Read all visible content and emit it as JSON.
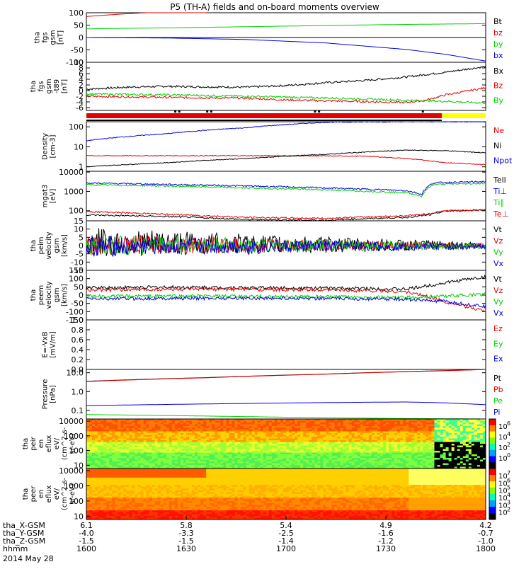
{
  "title": "P5 (TH-A) fields and on-board moments overview",
  "date_label": "2014 May 28",
  "colors": {
    "black": "#000000",
    "red": "#e00000",
    "green": "#00d000",
    "blue": "#0000e0",
    "yellow": "#ffff00"
  },
  "chart_data": [
    {
      "type": "line",
      "id": "fgs_gsm",
      "ylabel": [
        "tha",
        "fgs",
        "gsm",
        "[nT]"
      ],
      "yticks": [
        "100",
        "50",
        "0",
        "-50",
        "-100"
      ],
      "ylim": [
        -100,
        100
      ],
      "series": [
        {
          "name": "Bt",
          "color": "#000000",
          "x": [
            0,
            0.25,
            0.5,
            0.75,
            1
          ],
          "values": [
            0,
            0,
            0,
            0,
            0
          ]
        },
        {
          "name": "bz",
          "color": "#e00000",
          "x": [
            0,
            0.1,
            0.2,
            0.3
          ],
          "values": [
            85,
            96,
            104,
            112
          ]
        },
        {
          "name": "by",
          "color": "#00d000",
          "x": [
            0,
            0.25,
            0.5,
            0.75,
            1
          ],
          "values": [
            35,
            40,
            46,
            52,
            56
          ]
        },
        {
          "name": "bx",
          "color": "#0000e0",
          "x": [
            0,
            0.2,
            0.4,
            0.6,
            0.8,
            0.9,
            1
          ],
          "values": [
            0,
            -2,
            -8,
            -22,
            -48,
            -68,
            -95
          ]
        }
      ]
    },
    {
      "type": "line",
      "id": "fgs_gsm_detrended",
      "ylabel": [
        "tha",
        "fgs",
        "gsm",
        "-t89",
        "[nT]"
      ],
      "yticks": [
        "10",
        "8",
        "6",
        "4",
        "2",
        "0",
        "-2",
        "-4",
        "-6"
      ],
      "ylim": [
        -7,
        10
      ],
      "series": [
        {
          "name": "Bx",
          "color": "#000000",
          "x": [
            0,
            0.1,
            0.2,
            0.3,
            0.4,
            0.5,
            0.6,
            0.7,
            0.8,
            0.9,
            1
          ],
          "values": [
            0.5,
            1.2,
            1.5,
            1.3,
            1.2,
            1.8,
            2.8,
            3.6,
            4.8,
            6.5,
            8.5
          ]
        },
        {
          "name": "Bz",
          "color": "#e00000",
          "x": [
            0,
            0.2,
            0.4,
            0.5,
            0.6,
            0.7,
            0.8,
            0.85,
            0.9,
            1
          ],
          "values": [
            -2,
            -2.4,
            -2.7,
            -3.3,
            -3.6,
            -3.9,
            -4.2,
            -3.4,
            -1.5,
            1
          ]
        },
        {
          "name": "By",
          "color": "#00d000",
          "x": [
            0,
            0.2,
            0.4,
            0.6,
            0.8,
            0.9,
            1
          ],
          "values": [
            -1.2,
            -1.5,
            -2,
            -2.6,
            -3.4,
            -3.8,
            -4.4
          ]
        }
      ]
    },
    {
      "type": "line",
      "id": "density",
      "ylabel": [
        "Density",
        "[cm-3]"
      ],
      "yticks": [
        "100",
        "10",
        "1"
      ],
      "ylim": [
        0.6,
        180
      ],
      "log": true,
      "series": [
        {
          "name": "Ne",
          "color": "#e00000",
          "x": [
            0,
            0.5,
            0.7,
            0.8,
            0.9,
            1
          ],
          "values": [
            3.6,
            3.6,
            3.4,
            2.6,
            1.6,
            1.3
          ]
        },
        {
          "name": "Ni",
          "color": "#000000",
          "x": [
            0,
            0.2,
            0.4,
            0.6,
            0.8,
            0.9,
            1
          ],
          "values": [
            1,
            1.6,
            2.6,
            4.2,
            6.8,
            6.4,
            5
          ]
        },
        {
          "name": "Npot",
          "color": "#0000e0",
          "x": [
            0,
            0.2,
            0.4,
            0.6,
            0.8,
            1
          ],
          "values": [
            20,
            45,
            90,
            170,
            180,
            180
          ]
        }
      ]
    },
    {
      "type": "line",
      "id": "temperature",
      "ylabel": [
        "mgat3",
        "[eV]"
      ],
      "yticks": [
        "10000",
        "1000",
        "100"
      ],
      "ylim": [
        30,
        11000
      ],
      "log": true,
      "extra_labels": [
        "Te⊥"
      ],
      "series": [
        {
          "name": "Tell",
          "color": "#000000",
          "x": [
            0,
            0.2,
            0.4,
            0.6,
            0.8,
            0.86,
            0.9,
            1
          ],
          "values": [
            60,
            50,
            35,
            32,
            45,
            60,
            95,
            110
          ]
        },
        {
          "name": "Ti⊥",
          "color": "#0000e0",
          "x": [
            0,
            0.2,
            0.4,
            0.6,
            0.8,
            0.84,
            0.87,
            1
          ],
          "values": [
            2700,
            2300,
            1900,
            1500,
            1100,
            700,
            2800,
            3200
          ]
        },
        {
          "name": "Ti∥",
          "color": "#00d000",
          "x": [
            0,
            0.2,
            0.4,
            0.6,
            0.8,
            0.84,
            0.87,
            1
          ],
          "values": [
            2200,
            1900,
            1500,
            1200,
            850,
            550,
            2300,
            2600
          ]
        },
        {
          "name": "Te⊥",
          "color": "#e00000",
          "x": [
            0,
            0.2,
            0.4,
            0.6,
            0.8,
            0.86,
            0.9,
            1
          ],
          "values": [
            90,
            65,
            45,
            40,
            55,
            70,
            100,
            110
          ]
        }
      ]
    },
    {
      "type": "line",
      "id": "peim_velocity",
      "ylabel": [
        "tha",
        "peim",
        "velocity",
        "gsm",
        "[km/s]"
      ],
      "yticks": [
        "15",
        "10",
        "5",
        "0",
        "-5",
        "-10",
        "-15"
      ],
      "ylim": [
        -15,
        15
      ],
      "series": [
        {
          "name": "Vt",
          "color": "#000000",
          "x": [
            0,
            0.5,
            1
          ],
          "values": [
            2,
            0.5,
            0
          ]
        },
        {
          "name": "Vz",
          "color": "#e00000",
          "x": [
            0,
            0.5,
            1
          ],
          "values": [
            0.5,
            0,
            0
          ]
        },
        {
          "name": "Vy",
          "color": "#00d000",
          "x": [
            0,
            0.5,
            1
          ],
          "values": [
            0,
            0,
            -0.5
          ]
        },
        {
          "name": "Vx",
          "color": "#0000e0",
          "x": [
            0,
            0.5,
            1
          ],
          "values": [
            -0.5,
            -0.5,
            -0.5
          ]
        }
      ]
    },
    {
      "type": "line",
      "id": "peem_velocity",
      "ylabel": [
        "tha",
        "peem",
        "velocity",
        "gsm",
        "[km/s]"
      ],
      "yticks": [
        "150",
        "100",
        "50",
        "0",
        "-50",
        "-100",
        "-150"
      ],
      "ylim": [
        -150,
        150
      ],
      "series": [
        {
          "name": "Vt",
          "color": "#000000",
          "x": [
            0,
            0.2,
            0.4,
            0.6,
            0.7,
            0.8,
            0.85,
            0.9,
            0.95,
            1
          ],
          "values": [
            45,
            48,
            45,
            42,
            40,
            35,
            55,
            75,
            95,
            110
          ]
        },
        {
          "name": "Vz",
          "color": "#e00000",
          "x": [
            0,
            0.2,
            0.4,
            0.6,
            0.7,
            0.8,
            0.85,
            0.9,
            0.95,
            1
          ],
          "values": [
            30,
            35,
            35,
            30,
            28,
            20,
            -5,
            -40,
            -70,
            -95
          ]
        },
        {
          "name": "Vy",
          "color": "#00d000",
          "x": [
            0,
            0.2,
            0.4,
            0.6,
            0.8,
            0.9,
            1
          ],
          "values": [
            -8,
            -5,
            -8,
            -10,
            -15,
            -5,
            5
          ]
        },
        {
          "name": "Vx",
          "color": "#0000e0",
          "x": [
            0,
            0.2,
            0.4,
            0.6,
            0.8,
            0.9,
            1
          ],
          "values": [
            -22,
            -20,
            -18,
            -20,
            -25,
            -40,
            -70
          ]
        }
      ]
    },
    {
      "type": "line",
      "id": "e_field",
      "ylabel": [
        "E=-VxB",
        "[mV/m]"
      ],
      "yticks": [
        "1.0",
        "0.8",
        "0.6",
        "0.4",
        "0.2",
        "0.0"
      ],
      "ylim": [
        0,
        1
      ],
      "series": [
        {
          "name": "Ez",
          "color": "#e00000",
          "x": [],
          "values": []
        },
        {
          "name": "Ey",
          "color": "#00d000",
          "x": [],
          "values": []
        },
        {
          "name": "Ex",
          "color": "#0000e0",
          "x": [],
          "values": []
        }
      ]
    },
    {
      "type": "line",
      "id": "pressure",
      "ylabel": [
        "Pressure",
        "[nPa]"
      ],
      "yticks": [
        "10.0",
        "1.0",
        "0.1"
      ],
      "ylim": [
        0.035,
        15
      ],
      "log": true,
      "series": [
        {
          "name": "Pt",
          "color": "#000000",
          "x": [
            0,
            0.3,
            0.6,
            0.9,
            1
          ],
          "values": [
            3.5,
            5.5,
            8.5,
            13,
            15
          ]
        },
        {
          "name": "Pb",
          "color": "#e00000",
          "x": [
            0,
            0.3,
            0.6,
            0.9,
            1
          ],
          "values": [
            3.4,
            5.4,
            8.4,
            12.8,
            14.8
          ]
        },
        {
          "name": "Pe",
          "color": "#00d000",
          "x": [
            0,
            0.3,
            0.6,
            0.8,
            1
          ],
          "values": [
            0.06,
            0.05,
            0.04,
            0.037,
            0.035
          ]
        },
        {
          "name": "Pi",
          "color": "#0000e0",
          "x": [
            0,
            0.3,
            0.6,
            0.8,
            0.9,
            1
          ],
          "values": [
            0.18,
            0.22,
            0.26,
            0.28,
            0.25,
            0.2
          ]
        }
      ]
    },
    {
      "type": "heatmap",
      "id": "peir_en_eflux",
      "ylabel": [
        "tha",
        "peir",
        "en",
        "eflux",
        "eV/",
        "(cm^2-s-",
        "sr-eV)"
      ],
      "yticks": [
        "10000",
        "1000",
        "100",
        "10"
      ],
      "colorbar_labels": [
        "10",
        "10",
        "10",
        "10"
      ],
      "colorbar_exps": [
        "6",
        "4",
        "2",
        "0"
      ]
    },
    {
      "type": "heatmap",
      "id": "peer_en_eflux",
      "ylabel": [
        "tha",
        "peer",
        "en",
        "eflux",
        "eV/",
        "(cm^2-s-",
        "sr-eV)"
      ],
      "yticks": [
        "10000",
        "1000",
        "100",
        "10"
      ],
      "colorbar_labels": [
        "10",
        "10",
        "10",
        "10",
        "10",
        "10"
      ],
      "colorbar_exps": [
        "7",
        "6",
        "5",
        "4",
        "3",
        "2"
      ]
    }
  ],
  "xaxis": {
    "row_labels": [
      "tha_X-GSM",
      "tha_Y-GSM",
      "tha_Z-GSM",
      "hhmm"
    ],
    "columns": [
      [
        "6.1",
        "-4.0",
        "-1.5",
        "1600"
      ],
      [
        "5.8",
        "-3.3",
        "-1.5",
        "1630"
      ],
      [
        "5.4",
        "-2.5",
        "-1.4",
        "1700"
      ],
      [
        "4.9",
        "-1.6",
        "-1.2",
        "1730"
      ],
      [
        "4.2",
        "-0.7",
        "-1.0",
        "1800"
      ]
    ]
  }
}
